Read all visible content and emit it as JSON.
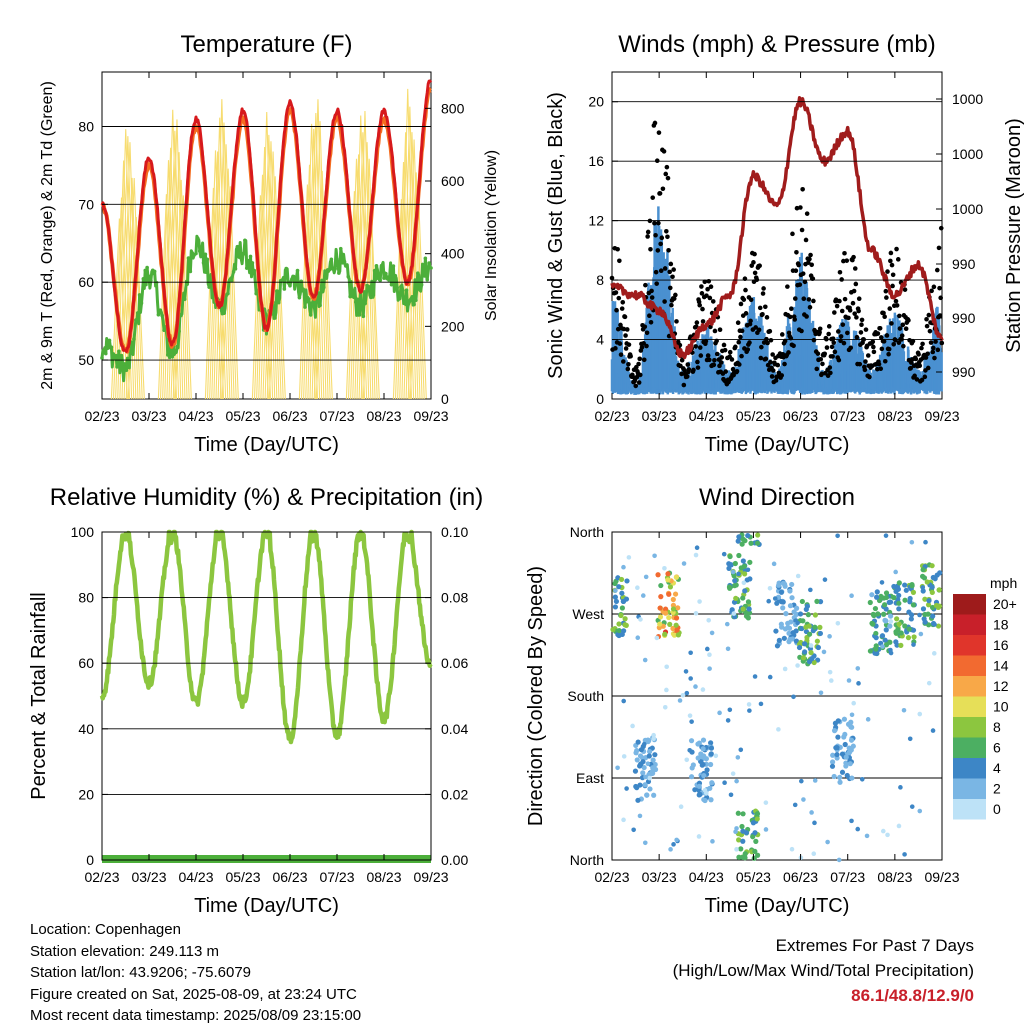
{
  "x_ticks": [
    "02/23",
    "03/23",
    "04/23",
    "05/23",
    "06/23",
    "07/23",
    "08/23",
    "09/23"
  ],
  "xlabel": "Time (Day/UTC)",
  "colors": {
    "temp2m": "#d7191c",
    "temp9m": "#f46d20",
    "dew": "#4caf3a",
    "solar": "#f7dc6f",
    "wind": "#4a90d0",
    "gust": "#000000",
    "pressure": "#a01c1c",
    "rh": "#8cc63f",
    "precip": "#4caf3a"
  },
  "charts": {
    "temperature": {
      "title": "Temperature (F)",
      "ylabel_left": "2m & 9m T (Red, Orange) & 2m Td (Green)",
      "ylabel_right": "Solar Insolation (Yellow)",
      "left_ticks": [
        "50",
        "60",
        "70",
        "80"
      ],
      "right_ticks": [
        "0",
        "200",
        "400",
        "600",
        "800"
      ]
    },
    "winds": {
      "title": "Winds (mph) & Pressure (mb)",
      "ylabel_left": "Sonic Wind & Gust (Blue, Black)",
      "ylabel_right": "Station Pressure (Maroon)",
      "left_ticks": [
        "0",
        "4",
        "8",
        "12",
        "16",
        "20"
      ],
      "right_ticks": [
        "990",
        "990",
        "990",
        "1000",
        "1000",
        "1000"
      ]
    },
    "humidity": {
      "title": "Relative Humidity (%) & Precipitation (in)",
      "ylabel_left": "Percent & Total Rainfall",
      "left_ticks": [
        "0",
        "20",
        "40",
        "60",
        "80",
        "100"
      ],
      "right_ticks": [
        "0.00",
        "0.02",
        "0.04",
        "0.06",
        "0.08",
        "0.10"
      ]
    },
    "direction": {
      "title": "Wind Direction",
      "ylabel_left": "Direction (Colored By Speed)",
      "left_ticks": [
        "North",
        "East",
        "South",
        "West",
        "North"
      ],
      "legend_title": "mph",
      "legend_labels": [
        "20+",
        "18",
        "16",
        "14",
        "12",
        "10",
        "8",
        "6",
        "4",
        "2",
        "0"
      ],
      "legend_colors": [
        "#9e1b1b",
        "#c8202a",
        "#e0352b",
        "#f26a30",
        "#f8a848",
        "#e6df58",
        "#8cc63f",
        "#4caf62",
        "#3d86c6",
        "#7ab6e4",
        "#bde2f7"
      ]
    }
  },
  "chart_data": [
    {
      "type": "line",
      "title": "Temperature (F)",
      "x": [
        0,
        0.5,
        1,
        1.5,
        2,
        2.5,
        3,
        3.5,
        4,
        4.5,
        5,
        5.5,
        6,
        6.5,
        7
      ],
      "x_ticks": [
        "02/23",
        "03/23",
        "04/23",
        "05/23",
        "06/23",
        "07/23",
        "08/23",
        "09/23"
      ],
      "xlabel": "Time (Day/UTC)",
      "ylabel": "2m & 9m T (Red, Orange) & 2m Td (Green)",
      "ylim": [
        45,
        87
      ],
      "y2label": "Solar Insolation (Yellow)",
      "y2lim": [
        0,
        900
      ],
      "series": [
        {
          "name": "2m T",
          "values": [
            70,
            51,
            76,
            52,
            81,
            57,
            82,
            54,
            83,
            58,
            82,
            59,
            82,
            60,
            86
          ]
        },
        {
          "name": "9m T",
          "values": [
            70,
            51,
            75,
            52,
            80,
            57,
            81,
            54,
            82,
            58,
            81,
            59,
            81,
            60,
            85
          ]
        },
        {
          "name": "2m Td",
          "values": [
            52,
            49,
            61,
            51,
            65,
            57,
            64,
            55,
            61,
            57,
            63,
            57,
            62,
            58,
            62
          ]
        },
        {
          "name": "Solar Insolation",
          "values": [
            0,
            0,
            760,
            0,
            840,
            0,
            860,
            0,
            830,
            0,
            860,
            0,
            850,
            0,
            880
          ]
        }
      ]
    },
    {
      "type": "scatter",
      "title": "Winds (mph) & Pressure (mb)",
      "x": [
        0,
        0.5,
        1,
        1.5,
        2,
        2.5,
        3,
        3.5,
        4,
        4.5,
        5,
        5.5,
        6,
        6.5,
        7
      ],
      "x_ticks": [
        "02/23",
        "03/23",
        "04/23",
        "05/23",
        "06/23",
        "07/23",
        "08/23",
        "09/23"
      ],
      "xlabel": "Time (Day/UTC)",
      "ylabel": "Sonic Wind & Gust (Blue, Black)",
      "ylim": [
        0,
        22
      ],
      "y2label": "Station Pressure (Maroon)",
      "series": [
        {
          "name": "Gust",
          "values": [
            11,
            2,
            20,
            3,
            8,
            3,
            10,
            3,
            14,
            4,
            10,
            4,
            10,
            3,
            11
          ]
        },
        {
          "name": "Sonic Wind",
          "values": [
            7,
            1,
            13,
            2,
            5,
            2,
            7,
            2,
            10,
            2,
            6,
            2,
            6,
            2,
            7
          ]
        },
        {
          "name": "Station Pressure (axis units)",
          "values": [
            7.5,
            7,
            6,
            3,
            5,
            7,
            15,
            13,
            20,
            16,
            18,
            10,
            7,
            9,
            4
          ]
        }
      ]
    },
    {
      "type": "line",
      "title": "Relative Humidity (%) & Precipitation (in)",
      "x": [
        0,
        0.5,
        1,
        1.5,
        2,
        2.5,
        3,
        3.5,
        4,
        4.5,
        5,
        5.5,
        6,
        6.5,
        7
      ],
      "x_ticks": [
        "02/23",
        "03/23",
        "04/23",
        "05/23",
        "06/23",
        "07/23",
        "08/23",
        "09/23"
      ],
      "xlabel": "Time (Day/UTC)",
      "ylabel": "Percent & Total Rainfall",
      "ylim": [
        0,
        100
      ],
      "y2lim": [
        0,
        0.1
      ],
      "series": [
        {
          "name": "Relative Humidity",
          "values": [
            50,
            100,
            54,
            100,
            48,
            100,
            48,
            100,
            37,
            100,
            38,
            100,
            43,
            100,
            59
          ]
        },
        {
          "name": "Total Precipitation",
          "values": [
            0,
            0,
            0,
            0,
            0,
            0,
            0,
            0,
            0,
            0,
            0,
            0,
            0,
            0,
            0
          ]
        }
      ]
    },
    {
      "type": "scatter",
      "title": "Wind Direction",
      "x": [
        0.1,
        0.7,
        1.2,
        1.9,
        2.7,
        2.9,
        3.7,
        4.2,
        4.9,
        5.7,
        6.2,
        6.8
      ],
      "x_ticks": [
        "02/23",
        "03/23",
        "04/23",
        "05/23",
        "06/23",
        "07/23",
        "08/23",
        "09/23"
      ],
      "xlabel": "Time (Day/UTC)",
      "ylabel": "Direction (Colored By Speed)",
      "y_categories": [
        "North",
        "East",
        "South",
        "West",
        "North"
      ],
      "series": [
        {
          "name": "Direction (deg)",
          "values": [
            280,
            100,
            280,
            100,
            300,
            20,
            270,
            250,
            120,
            260,
            270,
            290
          ]
        },
        {
          "name": "Speed (mph)",
          "values": [
            6,
            3,
            11,
            3,
            6,
            6,
            3,
            6,
            3,
            5,
            6,
            6
          ]
        }
      ]
    }
  ],
  "info": {
    "location": "Location: Copenhagen",
    "elevation": "Station elevation: 249.113 m",
    "latlon": "Station lat/lon: 43.9206; -75.6079",
    "created": "Figure created on Sat, 2025-08-09, at 23:24 UTC",
    "timestamp": "Most recent data timestamp: 2025/08/09 23:15:00"
  },
  "extremes": {
    "line1": "Extremes For Past 7 Days",
    "line2": "(High/Low/Max Wind/Total Precipitation)",
    "values": "86.1/48.8/12.9/0"
  }
}
